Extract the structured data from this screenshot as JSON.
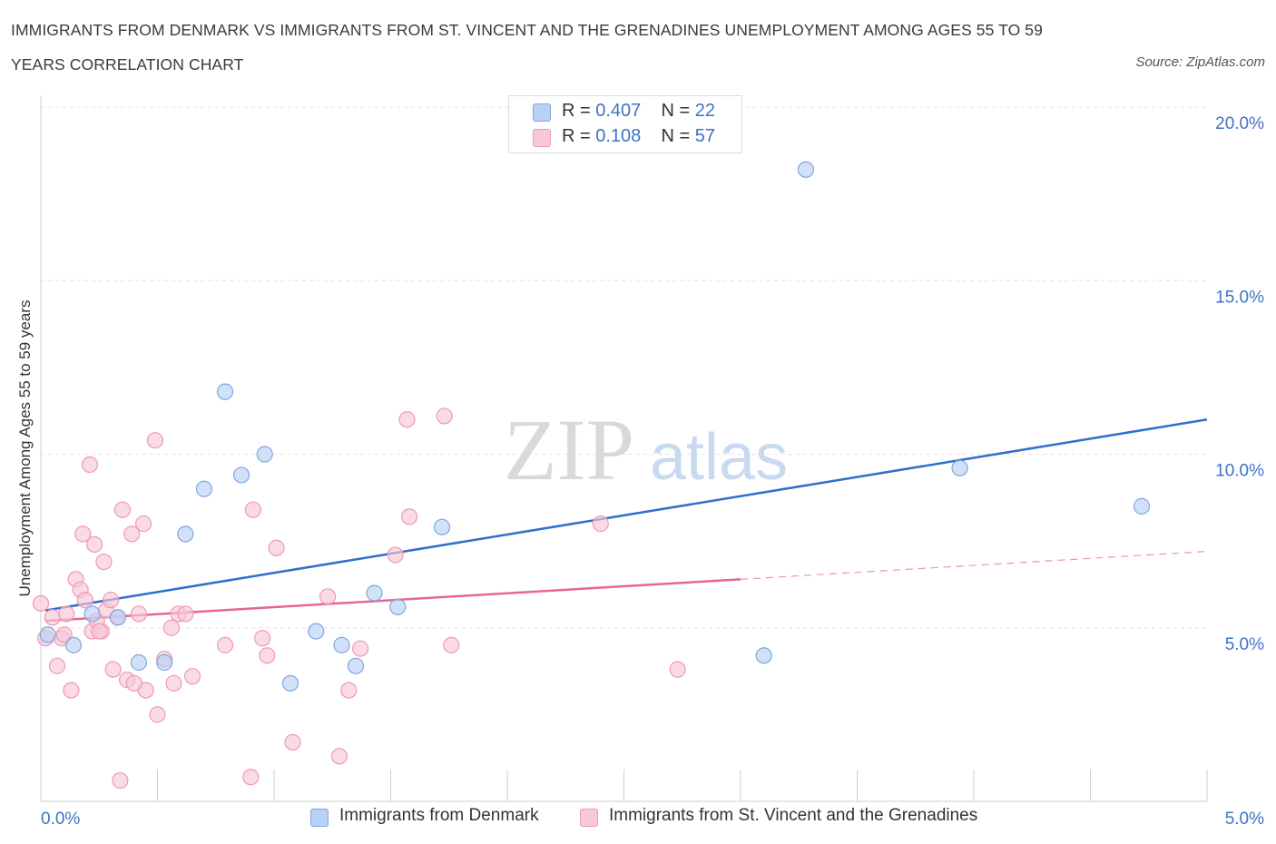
{
  "title": "IMMIGRANTS FROM DENMARK VS IMMIGRANTS FROM ST. VINCENT AND THE GRENADINES UNEMPLOYMENT AMONG AGES 55 TO 59 YEARS CORRELATION CHART",
  "source": "Source: ZipAtlas.com",
  "watermark": {
    "zip": "ZIP",
    "atlas": "atlas"
  },
  "legend_top": [
    {
      "r_label": "R =",
      "r_value": "0.407",
      "n_label": "N =",
      "n_value": "22"
    },
    {
      "r_label": "R =",
      "r_value": "0.108",
      "n_label": "N =",
      "n_value": "57"
    }
  ],
  "colors": {
    "denmark_fill": "#b9d1f5",
    "denmark_stroke": "#7fa7e0",
    "denmark_line": "#2f6fce",
    "svg_fill": "#f8c8d6",
    "svg_stroke": "#ee9ab4",
    "svg_line": "#e8668e",
    "grid": "#e3e3e3",
    "tick_blue": "#3f72c7"
  },
  "chart_data": {
    "type": "scatter",
    "xlabel": "",
    "ylabel": "Unemployment Among Ages 55 to 59 years",
    "xlim": [
      0,
      5
    ],
    "ylim": [
      0,
      20
    ],
    "x_tick_labels": [
      "0.0%",
      "5.0%"
    ],
    "y_ticks": [
      5,
      10,
      15,
      20
    ],
    "y_tick_labels": [
      "5.0%",
      "10.0%",
      "15.0%",
      "20.0%"
    ],
    "grid": true,
    "legend_position": "top-center",
    "series": [
      {
        "name": "Immigrants from Denmark",
        "trend": {
          "x0": 0.02,
          "y0": 5.5,
          "x1": 5.0,
          "y1": 11.0,
          "dash_from": null
        },
        "points": [
          {
            "x": 0.03,
            "y": 4.8
          },
          {
            "x": 0.14,
            "y": 4.5
          },
          {
            "x": 0.22,
            "y": 5.4
          },
          {
            "x": 0.33,
            "y": 5.3
          },
          {
            "x": 0.42,
            "y": 4.0
          },
          {
            "x": 0.53,
            "y": 4.0
          },
          {
            "x": 0.62,
            "y": 7.7
          },
          {
            "x": 0.7,
            "y": 9.0
          },
          {
            "x": 0.79,
            "y": 11.8
          },
          {
            "x": 0.86,
            "y": 9.4
          },
          {
            "x": 0.96,
            "y": 10.0
          },
          {
            "x": 1.07,
            "y": 3.4
          },
          {
            "x": 1.18,
            "y": 4.9
          },
          {
            "x": 1.29,
            "y": 4.5
          },
          {
            "x": 1.35,
            "y": 3.9
          },
          {
            "x": 1.43,
            "y": 6.0
          },
          {
            "x": 1.53,
            "y": 5.6
          },
          {
            "x": 1.72,
            "y": 7.9
          },
          {
            "x": 3.1,
            "y": 4.2
          },
          {
            "x": 3.28,
            "y": 18.2
          },
          {
            "x": 3.94,
            "y": 9.6
          },
          {
            "x": 4.72,
            "y": 8.5
          }
        ]
      },
      {
        "name": "Immigrants from St. Vincent and the Grenadines",
        "trend": {
          "x0": 0.02,
          "y0": 5.2,
          "x1": 5.0,
          "y1": 7.2,
          "dash_from": 3.0
        },
        "points": [
          {
            "x": 0.0,
            "y": 5.7
          },
          {
            "x": 0.02,
            "y": 4.7
          },
          {
            "x": 0.05,
            "y": 5.3
          },
          {
            "x": 0.07,
            "y": 3.9
          },
          {
            "x": 0.09,
            "y": 4.7
          },
          {
            "x": 0.11,
            "y": 5.4
          },
          {
            "x": 0.13,
            "y": 3.2
          },
          {
            "x": 0.15,
            "y": 6.4
          },
          {
            "x": 0.17,
            "y": 6.1
          },
          {
            "x": 0.18,
            "y": 7.7
          },
          {
            "x": 0.19,
            "y": 5.8
          },
          {
            "x": 0.21,
            "y": 9.7
          },
          {
            "x": 0.22,
            "y": 4.9
          },
          {
            "x": 0.23,
            "y": 7.4
          },
          {
            "x": 0.24,
            "y": 5.2
          },
          {
            "x": 0.26,
            "y": 4.9
          },
          {
            "x": 0.27,
            "y": 6.9
          },
          {
            "x": 0.28,
            "y": 5.5
          },
          {
            "x": 0.3,
            "y": 5.8
          },
          {
            "x": 0.31,
            "y": 3.8
          },
          {
            "x": 0.33,
            "y": 5.3
          },
          {
            "x": 0.34,
            "y": 0.6
          },
          {
            "x": 0.35,
            "y": 8.4
          },
          {
            "x": 0.37,
            "y": 3.5
          },
          {
            "x": 0.39,
            "y": 7.7
          },
          {
            "x": 0.42,
            "y": 5.4
          },
          {
            "x": 0.44,
            "y": 8.0
          },
          {
            "x": 0.45,
            "y": 3.2
          },
          {
            "x": 0.49,
            "y": 10.4
          },
          {
            "x": 0.5,
            "y": 2.5
          },
          {
            "x": 0.53,
            "y": 4.1
          },
          {
            "x": 0.56,
            "y": 5.0
          },
          {
            "x": 0.57,
            "y": 3.4
          },
          {
            "x": 0.59,
            "y": 5.4
          },
          {
            "x": 0.62,
            "y": 5.4
          },
          {
            "x": 0.65,
            "y": 3.6
          },
          {
            "x": 0.79,
            "y": 4.5
          },
          {
            "x": 0.9,
            "y": 0.7
          },
          {
            "x": 0.91,
            "y": 8.4
          },
          {
            "x": 0.95,
            "y": 4.7
          },
          {
            "x": 0.97,
            "y": 4.2
          },
          {
            "x": 1.01,
            "y": 7.3
          },
          {
            "x": 1.08,
            "y": 1.7
          },
          {
            "x": 1.23,
            "y": 5.9
          },
          {
            "x": 1.28,
            "y": 1.3
          },
          {
            "x": 1.32,
            "y": 3.2
          },
          {
            "x": 1.37,
            "y": 4.4
          },
          {
            "x": 1.52,
            "y": 7.1
          },
          {
            "x": 1.57,
            "y": 11.0
          },
          {
            "x": 1.58,
            "y": 8.2
          },
          {
            "x": 1.73,
            "y": 11.1
          },
          {
            "x": 1.76,
            "y": 4.5
          },
          {
            "x": 2.4,
            "y": 8.0
          },
          {
            "x": 2.73,
            "y": 3.8
          },
          {
            "x": 0.1,
            "y": 4.8
          },
          {
            "x": 0.25,
            "y": 4.9
          },
          {
            "x": 0.4,
            "y": 3.4
          }
        ]
      }
    ]
  }
}
